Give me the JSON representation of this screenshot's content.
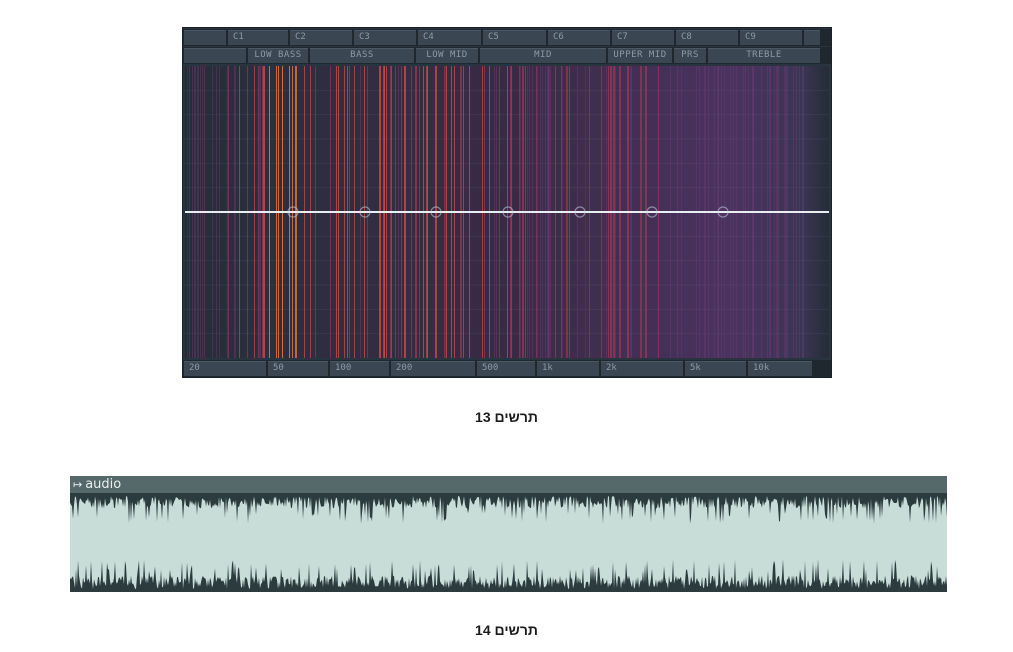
{
  "analyzer": {
    "notes": [
      "",
      "C1",
      "C2",
      "C3",
      "C4",
      "C5",
      "C6",
      "C7",
      "C8",
      "C9",
      ""
    ],
    "bands": [
      "",
      "LOW BASS",
      "BASS",
      "LOW MID",
      "MID",
      "UPPER MID",
      "PRS",
      "TREBLE"
    ],
    "freqs": [
      "20",
      "50",
      "100",
      "200",
      "500",
      "1k",
      "2k",
      "5k",
      "10k"
    ],
    "colors": {
      "background": "#232c35",
      "line": "#e8eef2",
      "hot": "#e0703a",
      "mid": "#a83a55",
      "cool": "#6a3a70"
    }
  },
  "captions": {
    "fig13": "תרשים 13",
    "fig14": "תרשים 14"
  },
  "audio_clip": {
    "arrow_icon": "play-arrow-icon",
    "label": "audio",
    "colors": {
      "header": "#56696a",
      "body": "#c9ddd8",
      "wave": "#2c3b3e"
    }
  }
}
